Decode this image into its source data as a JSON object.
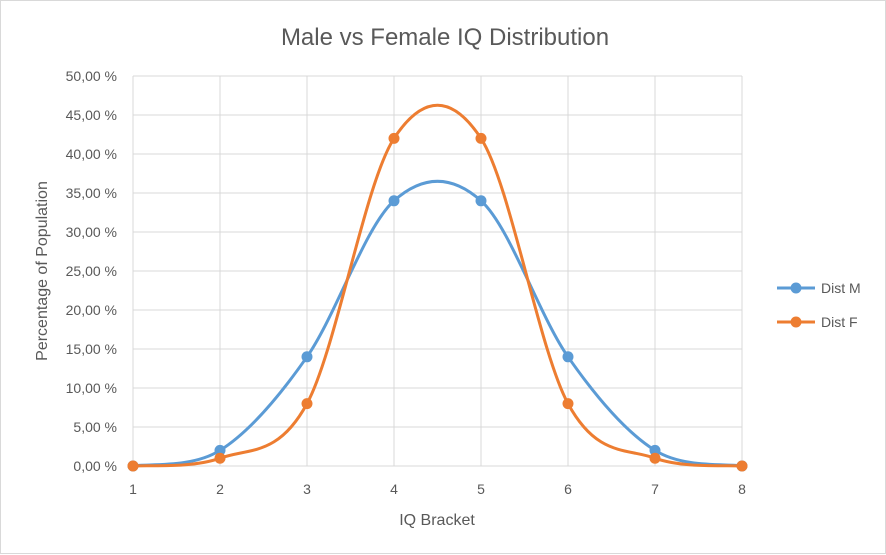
{
  "chart_data": {
    "type": "line",
    "title": "Male vs Female IQ Distribution",
    "xlabel": "IQ Bracket",
    "ylabel": "Percentage of Population",
    "x": [
      1,
      2,
      3,
      4,
      5,
      6,
      7,
      8
    ],
    "x_tick_labels": [
      "1",
      "2",
      "3",
      "4",
      "5",
      "6",
      "7",
      "8"
    ],
    "y_tick_labels": [
      "0,00 %",
      "5,00 %",
      "10,00 %",
      "15,00 %",
      "20,00 %",
      "25,00 %",
      "30,00 %",
      "35,00 %",
      "40,00 %",
      "45,00 %",
      "50,00 %"
    ],
    "ylim": [
      0,
      50
    ],
    "xlim": [
      1,
      8
    ],
    "grid": true,
    "smooth": true,
    "legend_position": "right",
    "series": [
      {
        "name": "Dist M",
        "color": "#5b9bd5",
        "values": [
          0,
          2,
          14,
          34,
          34,
          14,
          2,
          0
        ]
      },
      {
        "name": "Dist F",
        "color": "#ed7d31",
        "values": [
          0,
          1,
          8,
          42,
          42,
          8,
          1,
          0
        ]
      }
    ]
  }
}
